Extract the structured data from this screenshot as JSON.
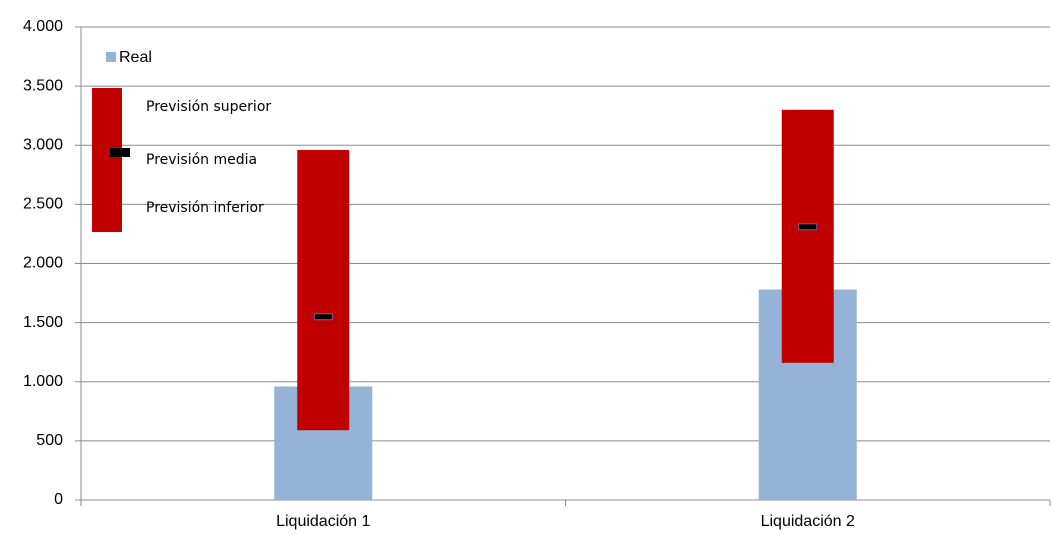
{
  "chart_data": {
    "type": "bar-range",
    "categories": [
      "Liquidación 1",
      "Liquidación 2"
    ],
    "series": [
      {
        "name": "Real",
        "color": "#95b3d7",
        "values": [
          960,
          1780
        ]
      }
    ],
    "range": {
      "color": "#c00000",
      "mean_color": "#000000",
      "high": {
        "name": "Previsión superior",
        "values": [
          2960,
          3300
        ]
      },
      "mean": {
        "name": "Previsión media",
        "values": [
          1550,
          2310
        ]
      },
      "low": {
        "name": "Previsión inferior",
        "values": [
          590,
          1160
        ]
      }
    },
    "ylim": [
      0,
      4000
    ],
    "yticks": [
      0,
      500,
      {
        "value": 1000,
        "label": "1.000"
      },
      {
        "value": 1500,
        "label": "1.500"
      },
      {
        "value": 2000,
        "label": "2.000"
      },
      {
        "value": 2500,
        "label": "2.500"
      },
      {
        "value": 3000,
        "label": "3.000"
      },
      {
        "value": 3500,
        "label": "3.500"
      },
      {
        "value": 4000,
        "label": "4.000"
      }
    ],
    "grid": true
  }
}
